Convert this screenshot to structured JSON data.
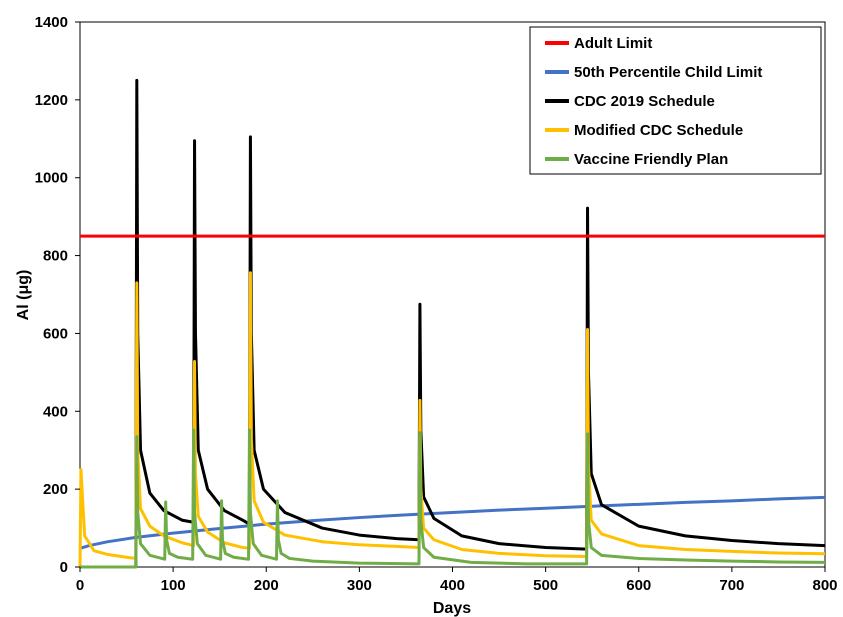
{
  "chart_data": {
    "type": "line",
    "title": "",
    "xlabel": "Days",
    "ylabel": "Al (μg)",
    "xlim": [
      0,
      800
    ],
    "ylim": [
      0,
      1400
    ],
    "x_ticks": [
      0,
      100,
      200,
      300,
      400,
      500,
      600,
      700,
      800
    ],
    "y_ticks": [
      0,
      200,
      400,
      600,
      800,
      1000,
      1200,
      1400
    ],
    "grid": false,
    "legend_position": "top-right",
    "series": [
      {
        "name": "Adult Limit",
        "color": "#ff0000",
        "x": [
          0,
          800
        ],
        "y": [
          850,
          850
        ]
      },
      {
        "name": "50th Percentile Child Limit",
        "color": "#4472c4",
        "x": [
          0,
          10,
          30,
          60,
          100,
          150,
          200,
          250,
          300,
          350,
          400,
          450,
          500,
          550,
          600,
          650,
          700,
          750,
          800
        ],
        "y": [
          48,
          55,
          65,
          76,
          87,
          99,
          110,
          119,
          127,
          134,
          140,
          146,
          151,
          156,
          161,
          166,
          170,
          175,
          179
        ]
      },
      {
        "name": "CDC 2019 Schedule",
        "color": "#000000",
        "x": [
          60,
          61,
          62,
          65,
          75,
          90,
          110,
          122,
          123,
          124,
          127,
          137,
          155,
          175,
          182,
          183,
          184,
          187,
          197,
          220,
          260,
          300,
          340,
          364,
          365,
          366,
          369,
          380,
          410,
          450,
          500,
          544,
          545,
          546,
          549,
          560,
          600,
          650,
          700,
          750,
          800
        ],
        "y": [
          0,
          1250,
          600,
          300,
          190,
          145,
          120,
          115,
          1095,
          600,
          300,
          200,
          145,
          120,
          110,
          1105,
          600,
          300,
          200,
          140,
          100,
          82,
          73,
          70,
          675,
          350,
          180,
          125,
          80,
          60,
          50,
          46,
          922,
          500,
          240,
          160,
          105,
          80,
          68,
          60,
          55
        ]
      },
      {
        "name": "Modified CDC Schedule",
        "color": "#ffc000",
        "x": [
          0,
          1,
          5,
          15,
          30,
          50,
          60,
          61,
          62,
          65,
          75,
          90,
          110,
          122,
          123,
          124,
          127,
          137,
          155,
          175,
          182,
          183,
          184,
          187,
          197,
          220,
          260,
          300,
          340,
          364,
          365,
          366,
          369,
          380,
          410,
          450,
          500,
          544,
          545,
          546,
          549,
          560,
          600,
          650,
          700,
          750,
          800
        ],
        "y": [
          0,
          250,
          80,
          42,
          32,
          25,
          22,
          730,
          300,
          150,
          105,
          80,
          62,
          55,
          528,
          240,
          130,
          90,
          62,
          50,
          48,
          756,
          330,
          170,
          115,
          82,
          65,
          57,
          53,
          50,
          428,
          200,
          100,
          70,
          45,
          35,
          29,
          27,
          610,
          260,
          120,
          85,
          55,
          45,
          40,
          36,
          34
        ]
      },
      {
        "name": "Vaccine Friendly Plan",
        "color": "#70ad47",
        "x": [
          0,
          60,
          61,
          62,
          65,
          75,
          91,
          92,
          93,
          96,
          105,
          121,
          122,
          123,
          126,
          135,
          151,
          152,
          153,
          156,
          165,
          181,
          182,
          183,
          186,
          195,
          211,
          212,
          213,
          216,
          225,
          250,
          300,
          364,
          365,
          366,
          369,
          380,
          420,
          480,
          544,
          545,
          546,
          549,
          560,
          600,
          650,
          700,
          750,
          800
        ],
        "y": [
          0,
          0,
          335,
          140,
          60,
          30,
          20,
          167,
          70,
          35,
          25,
          20,
          352,
          140,
          60,
          30,
          20,
          170,
          70,
          35,
          25,
          20,
          352,
          140,
          60,
          30,
          20,
          170,
          70,
          35,
          22,
          15,
          10,
          8,
          345,
          120,
          50,
          25,
          12,
          8,
          8,
          342,
          120,
          50,
          30,
          22,
          18,
          15,
          13,
          12
        ]
      }
    ]
  }
}
